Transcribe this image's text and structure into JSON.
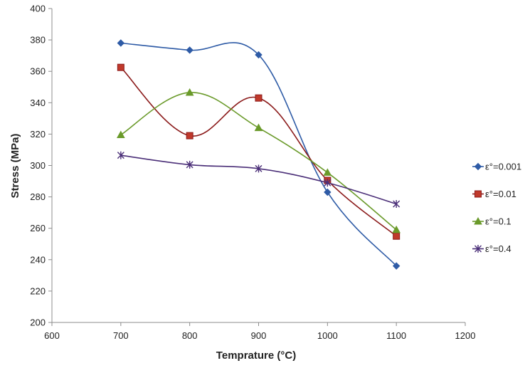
{
  "chart_data": {
    "type": "line",
    "title": "",
    "xlabel": "Temprature (°C)",
    "ylabel": "Stress (MPa)",
    "xlim": [
      600,
      1200
    ],
    "ylim": [
      200,
      400
    ],
    "x_ticks": [
      600,
      700,
      800,
      900,
      1000,
      1100,
      1200
    ],
    "y_ticks": [
      200,
      220,
      240,
      260,
      280,
      300,
      320,
      340,
      360,
      380,
      400
    ],
    "grid": false,
    "legend_position": "right",
    "x": [
      700,
      800,
      900,
      1000,
      1100
    ],
    "series": [
      {
        "name": "ε°=0.001",
        "values": [
          378,
          373.5,
          370.5,
          283,
          236
        ],
        "color": "#2E5BA6",
        "marker": "diamond"
      },
      {
        "name": "ε°=0.01",
        "values": [
          362.5,
          319,
          343,
          290.5,
          255
        ],
        "color": "#8B1A1A",
        "marker": "square"
      },
      {
        "name": "ε°=0.1",
        "values": [
          319.5,
          346.5,
          324,
          295.5,
          259
        ],
        "color": "#6A9A2A",
        "marker": "triangle"
      },
      {
        "name": "ε°=0.4",
        "values": [
          306.5,
          300.5,
          298,
          289,
          275.5
        ],
        "color": "#4B2F78",
        "marker": "star"
      }
    ]
  }
}
